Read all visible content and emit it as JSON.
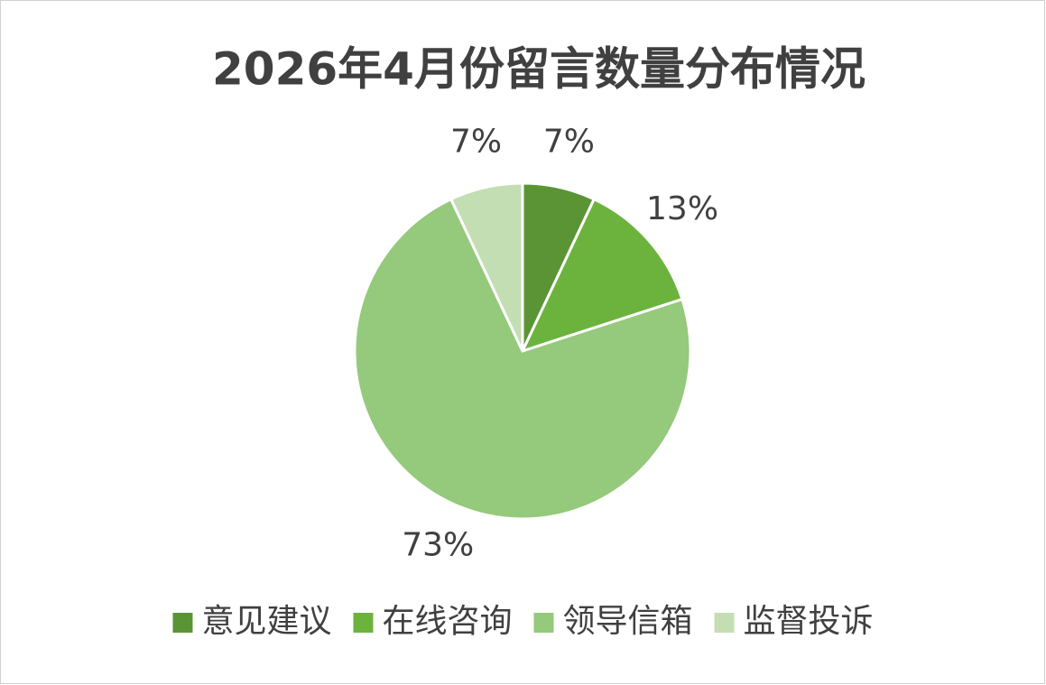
{
  "chart_data": {
    "type": "pie",
    "title": "2026年4月份留言数量分布情况",
    "categories": [
      "意见建议",
      "在线咨询",
      "领导信箱",
      "监督投诉"
    ],
    "values": [
      7,
      13,
      73,
      7
    ],
    "value_labels": [
      "7%",
      "13%",
      "73%",
      "7%"
    ],
    "colors": [
      "#5b9435",
      "#6cb33e",
      "#95c97b",
      "#c3deb2"
    ],
    "legend": "bottom"
  }
}
